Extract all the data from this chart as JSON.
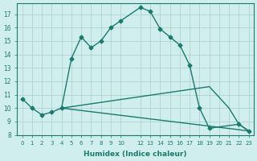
{
  "xlabel": "Humidex (Indice chaleur)",
  "bg_color": "#d0eeee",
  "line_color": "#1a7a6e",
  "grid_color": "#aacccc",
  "line1_x": [
    0,
    1,
    2,
    3,
    4,
    5,
    6,
    7,
    8,
    9,
    10,
    12,
    13,
    14,
    15,
    16,
    17,
    18,
    19,
    22,
    23
  ],
  "line1_y": [
    10.7,
    10.0,
    9.5,
    9.7,
    10.0,
    13.7,
    15.3,
    14.5,
    15.0,
    16.0,
    16.5,
    17.5,
    17.2,
    15.9,
    15.3,
    14.7,
    13.2,
    10.0,
    8.5,
    8.8,
    8.3
  ],
  "line2_x": [
    4,
    23
  ],
  "line2_y": [
    10.0,
    8.3
  ],
  "line3_x": [
    4,
    19,
    21,
    22,
    23
  ],
  "line3_y": [
    10.0,
    11.6,
    10.0,
    8.8,
    8.3
  ],
  "xlim": [
    -0.5,
    23.5
  ],
  "ylim": [
    8,
    17.8
  ],
  "yticks": [
    8,
    9,
    10,
    11,
    12,
    13,
    14,
    15,
    16,
    17
  ],
  "xticks": [
    0,
    1,
    2,
    3,
    4,
    5,
    6,
    7,
    8,
    9,
    10,
    12,
    13,
    14,
    15,
    16,
    17,
    18,
    19,
    20,
    21,
    22,
    23
  ]
}
